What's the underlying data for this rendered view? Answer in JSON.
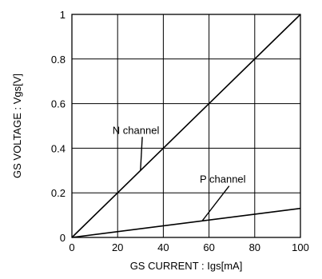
{
  "chart_data": {
    "type": "line",
    "title": "",
    "xlabel": "GS CURRENT : Igs[mA]",
    "ylabel": "GS VOLTAGE : Vgs[V]",
    "xlim": [
      0,
      100
    ],
    "ylim": [
      0,
      1
    ],
    "grid": true,
    "x_ticks": [
      {
        "value": 0,
        "label": "0"
      },
      {
        "value": 20,
        "label": "20"
      },
      {
        "value": 40,
        "label": "40"
      },
      {
        "value": 60,
        "label": "60"
      },
      {
        "value": 80,
        "label": "80"
      },
      {
        "value": 100,
        "label": "100"
      }
    ],
    "y_ticks": [
      {
        "value": 0,
        "label": "0"
      },
      {
        "value": 0.2,
        "label": "0.2"
      },
      {
        "value": 0.4,
        "label": "0.4"
      },
      {
        "value": 0.6,
        "label": "0.6"
      },
      {
        "value": 0.8,
        "label": "0.8"
      },
      {
        "value": 1,
        "label": "1"
      }
    ],
    "series": [
      {
        "key": "n",
        "x": [
          0,
          100
        ],
        "y": [
          0,
          1.0
        ]
      },
      {
        "key": "p",
        "x": [
          0,
          100
        ],
        "y": [
          0,
          0.13
        ]
      }
    ],
    "annotations": [
      {
        "series": "n",
        "text": "N channel",
        "label_x": 28,
        "label_y": 0.465,
        "point_x": 30,
        "point_y": 0.3
      },
      {
        "series": "p",
        "text": "P channel",
        "label_x": 66,
        "label_y": 0.245,
        "point_x": 57,
        "point_y": 0.074
      }
    ]
  }
}
